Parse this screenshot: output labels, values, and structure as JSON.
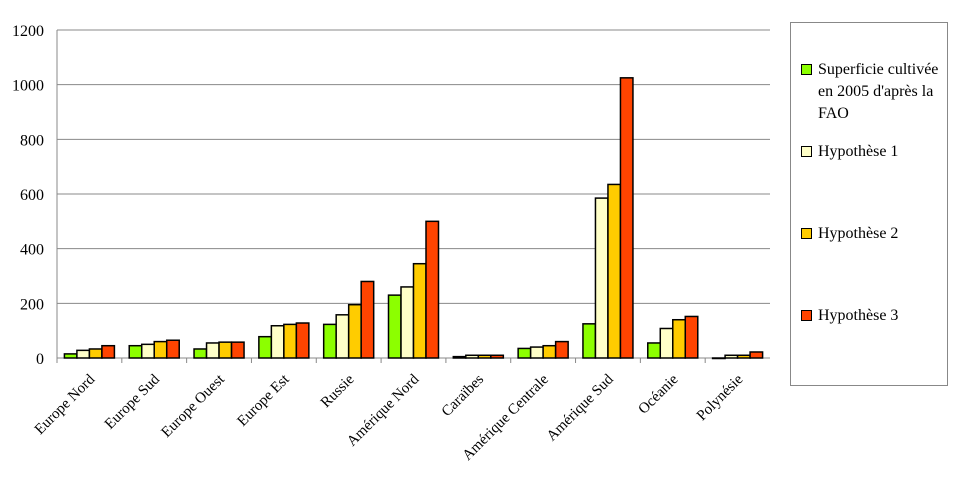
{
  "chart_data": {
    "type": "bar",
    "title": "",
    "xlabel": "",
    "ylabel": "",
    "ylim": [
      0,
      1200
    ],
    "yticks": [
      0,
      200,
      400,
      600,
      800,
      1000,
      1200
    ],
    "grid": true,
    "legend_position": "right",
    "categories": [
      "Europe Nord",
      "Europe Sud",
      "Europe Ouest",
      "Europe Est",
      "Russie",
      "Amérique Nord",
      "Caraïbes",
      "Amérique Centrale",
      "Amérique Sud",
      "Océanie",
      "Polynésie"
    ],
    "series": [
      {
        "name": "Superficie cultivée en 2005 d'après la FAO",
        "color": "#8cff00",
        "values": [
          15,
          45,
          33,
          78,
          123,
          230,
          5,
          35,
          125,
          55,
          0
        ]
      },
      {
        "name": "Hypothèse 1",
        "color": "#ffffc8",
        "values": [
          28,
          50,
          55,
          118,
          158,
          260,
          10,
          40,
          585,
          108,
          10
        ]
      },
      {
        "name": "Hypothèse 2",
        "color": "#ffcc00",
        "values": [
          33,
          60,
          58,
          123,
          195,
          345,
          10,
          45,
          635,
          140,
          10
        ]
      },
      {
        "name": "Hypothèse 3",
        "color": "#ff4400",
        "values": [
          45,
          65,
          58,
          128,
          280,
          500,
          10,
          60,
          1025,
          152,
          22
        ]
      }
    ]
  }
}
